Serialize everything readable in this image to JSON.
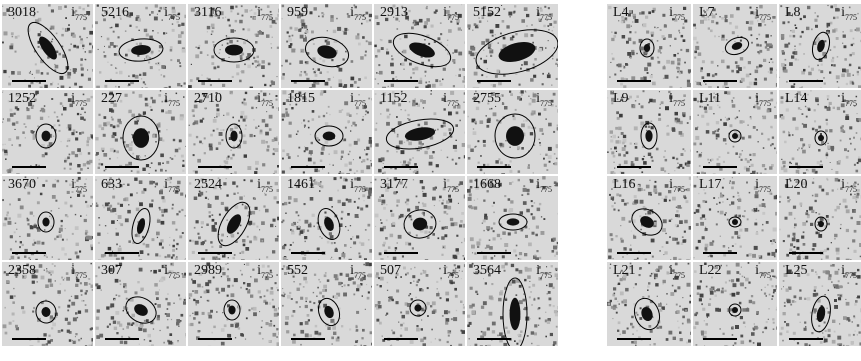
{
  "filter_label": {
    "letter": "i",
    "sub": "775"
  },
  "left_panel": [
    {
      "id": "3018"
    },
    {
      "id": "5216"
    },
    {
      "id": "3116"
    },
    {
      "id": "959"
    },
    {
      "id": "2913"
    },
    {
      "id": "5152"
    },
    {
      "id": "1252"
    },
    {
      "id": "227"
    },
    {
      "id": "2710"
    },
    {
      "id": "1815"
    },
    {
      "id": "1152"
    },
    {
      "id": "2755"
    },
    {
      "id": "3670"
    },
    {
      "id": "633"
    },
    {
      "id": "2524"
    },
    {
      "id": "1461"
    },
    {
      "id": "3177"
    },
    {
      "id": "1668"
    },
    {
      "id": "2358"
    },
    {
      "id": "307"
    },
    {
      "id": "2989"
    },
    {
      "id": "552"
    },
    {
      "id": "507"
    },
    {
      "id": "3564"
    }
  ],
  "right_panel": [
    {
      "id": "L4"
    },
    {
      "id": "L7"
    },
    {
      "id": "L8"
    },
    {
      "id": "L9"
    },
    {
      "id": "L11"
    },
    {
      "id": "L14"
    },
    {
      "id": "L16"
    },
    {
      "id": "L17"
    },
    {
      "id": "L20"
    },
    {
      "id": "L21"
    },
    {
      "id": "L22"
    },
    {
      "id": "L25"
    }
  ]
}
